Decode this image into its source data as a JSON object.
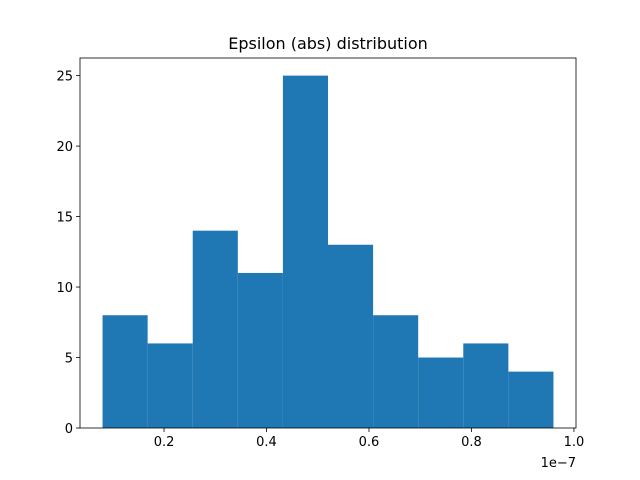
{
  "chart_data": {
    "type": "bar",
    "title": "Epsilon (abs) distribution",
    "xlabel": "",
    "ylabel": "",
    "x_offset_label": "1e−7",
    "bar_color": "#1f77b4",
    "bin_edges": [
      0.08,
      0.168,
      0.256,
      0.344,
      0.432,
      0.52,
      0.608,
      0.696,
      0.784,
      0.872,
      0.96
    ],
    "values": [
      8,
      6,
      14,
      11,
      25,
      13,
      8,
      5,
      6,
      4
    ],
    "xlim": [
      0.036,
      1.004
    ],
    "ylim": [
      0,
      26.25
    ],
    "x_ticks": [
      {
        "value": 0.2,
        "label": "0.2"
      },
      {
        "value": 0.4,
        "label": "0.4"
      },
      {
        "value": 0.6,
        "label": "0.6"
      },
      {
        "value": 0.8,
        "label": "0.8"
      },
      {
        "value": 1.0,
        "label": "1.0"
      }
    ],
    "y_ticks": [
      {
        "value": 0,
        "label": "0"
      },
      {
        "value": 5,
        "label": "5"
      },
      {
        "value": 10,
        "label": "10"
      },
      {
        "value": 15,
        "label": "15"
      },
      {
        "value": 20,
        "label": "20"
      },
      {
        "value": 25,
        "label": "25"
      }
    ],
    "grid": false,
    "legend": "none"
  }
}
